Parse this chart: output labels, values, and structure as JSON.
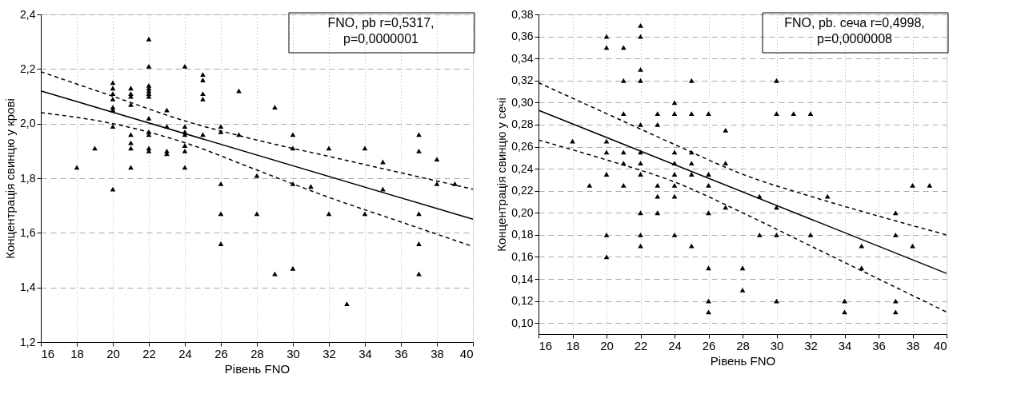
{
  "chart_data": [
    {
      "type": "scatter",
      "xlabel": "Рівень FNO",
      "ylabel": "Концентрація свинцю у крові",
      "annotations": [
        "FNO, pb r=0,5317,",
        "p=0,0000001"
      ],
      "xlim": [
        16,
        40
      ],
      "xticks": [
        16,
        18,
        20,
        22,
        24,
        26,
        28,
        30,
        32,
        34,
        36,
        38,
        40
      ],
      "ylim": [
        1.2,
        2.4
      ],
      "yticks": [
        {
          "value": 1.2,
          "label": "1,2"
        },
        {
          "value": 1.4,
          "label": "1,4"
        },
        {
          "value": 1.6,
          "label": "1,6"
        },
        {
          "value": 1.8,
          "label": "1,8"
        },
        {
          "value": 2.0,
          "label": "2,0"
        },
        {
          "value": 2.2,
          "label": "2,2"
        },
        {
          "value": 2.4,
          "label": "2,4"
        }
      ],
      "grid": true,
      "series": [
        {
          "marker": "triangle",
          "color": "#000000",
          "x": [
            18,
            19,
            20,
            20,
            20,
            20,
            20,
            20,
            20,
            20,
            21,
            21,
            21,
            21,
            21,
            21,
            21,
            21,
            22,
            22,
            22,
            22,
            22,
            22,
            22,
            22,
            22,
            22,
            22,
            22,
            23,
            23,
            23,
            23,
            24,
            24,
            24,
            24,
            24,
            24,
            24,
            25,
            25,
            25,
            25,
            25,
            26,
            26,
            26,
            26,
            26,
            27,
            27,
            28,
            28,
            29,
            29,
            30,
            30,
            30,
            30,
            31,
            32,
            32,
            33,
            34,
            34,
            35,
            35,
            37,
            37,
            37,
            37,
            37,
            38,
            38,
            39
          ],
          "values": [
            1.84,
            1.91,
            2.15,
            2.13,
            2.11,
            2.09,
            2.06,
            2.05,
            1.99,
            1.76,
            2.13,
            2.11,
            2.1,
            2.07,
            1.96,
            1.93,
            1.91,
            1.84,
            2.31,
            2.21,
            2.14,
            2.13,
            2.12,
            2.11,
            2.1,
            2.02,
            1.97,
            1.96,
            1.91,
            1.9,
            2.05,
            1.99,
            1.9,
            1.89,
            2.21,
            1.99,
            1.97,
            1.96,
            1.92,
            1.9,
            1.84,
            2.18,
            2.16,
            2.11,
            2.09,
            1.96,
            1.99,
            1.97,
            1.78,
            1.67,
            1.56,
            2.12,
            1.96,
            1.81,
            1.67,
            2.06,
            1.45,
            1.96,
            1.91,
            1.78,
            1.47,
            1.77,
            1.91,
            1.67,
            1.34,
            1.91,
            1.67,
            1.86,
            1.76,
            1.96,
            1.9,
            1.67,
            1.56,
            1.45,
            1.87,
            1.78,
            1.78
          ]
        },
        {
          "type": "line",
          "color": "#000000",
          "line_style": "solid",
          "x": [
            16,
            40
          ],
          "values": [
            2.12,
            1.65
          ]
        },
        {
          "type": "line",
          "color": "#000000",
          "line_style": "dashed",
          "x": [
            16,
            20,
            24,
            28,
            32,
            36,
            40
          ],
          "values": [
            2.19,
            2.1,
            2.01,
            1.94,
            1.88,
            1.82,
            1.76
          ]
        },
        {
          "type": "line",
          "color": "#000000",
          "line_style": "dashed",
          "x": [
            16,
            20,
            24,
            28,
            32,
            36,
            40
          ],
          "values": [
            2.04,
            2.0,
            1.93,
            1.83,
            1.73,
            1.64,
            1.55
          ]
        }
      ]
    },
    {
      "type": "scatter",
      "xlabel": "Рівень FNO",
      "ylabel": "Концентрація свинцю у сечі",
      "annotations": [
        "FNO, pb. сеча  r=0,4998,",
        "p=0,0000008"
      ],
      "xlim": [
        16,
        40
      ],
      "xticks": [
        16,
        18,
        20,
        22,
        24,
        26,
        28,
        30,
        32,
        34,
        36,
        38,
        40
      ],
      "ylim": [
        0.09,
        0.38
      ],
      "yticks": [
        {
          "value": 0.1,
          "label": "0,10"
        },
        {
          "value": 0.12,
          "label": "0,12"
        },
        {
          "value": 0.14,
          "label": "0,14"
        },
        {
          "value": 0.16,
          "label": "0,16"
        },
        {
          "value": 0.18,
          "label": "0,18"
        },
        {
          "value": 0.2,
          "label": "0,20"
        },
        {
          "value": 0.22,
          "label": "0,22"
        },
        {
          "value": 0.24,
          "label": "0,24"
        },
        {
          "value": 0.26,
          "label": "0,26"
        },
        {
          "value": 0.28,
          "label": "0,28"
        },
        {
          "value": 0.3,
          "label": "0,30"
        },
        {
          "value": 0.32,
          "label": "0,32"
        },
        {
          "value": 0.34,
          "label": "0,34"
        },
        {
          "value": 0.36,
          "label": "0,36"
        },
        {
          "value": 0.38,
          "label": "0,38"
        }
      ],
      "grid": true,
      "series": [
        {
          "marker": "triangle",
          "color": "#000000",
          "x": [
            18,
            19,
            20,
            20,
            20,
            20,
            20,
            20,
            20,
            21,
            21,
            21,
            21,
            21,
            21,
            22,
            22,
            22,
            22,
            22,
            22,
            22,
            22,
            22,
            22,
            22,
            23,
            23,
            23,
            23,
            23,
            24,
            24,
            24,
            24,
            24,
            24,
            24,
            24,
            25,
            25,
            25,
            25,
            25,
            25,
            26,
            26,
            26,
            26,
            26,
            26,
            26,
            27,
            27,
            27,
            28,
            28,
            29,
            29,
            30,
            30,
            30,
            30,
            30,
            31,
            32,
            32,
            33,
            34,
            34,
            35,
            35,
            37,
            37,
            37,
            37,
            38,
            38,
            39
          ],
          "values": [
            0.265,
            0.225,
            0.36,
            0.35,
            0.265,
            0.255,
            0.235,
            0.18,
            0.16,
            0.35,
            0.32,
            0.29,
            0.255,
            0.245,
            0.225,
            0.37,
            0.36,
            0.33,
            0.32,
            0.28,
            0.255,
            0.245,
            0.235,
            0.2,
            0.18,
            0.17,
            0.29,
            0.28,
            0.225,
            0.215,
            0.2,
            0.3,
            0.29,
            0.255,
            0.245,
            0.235,
            0.225,
            0.215,
            0.18,
            0.32,
            0.29,
            0.255,
            0.245,
            0.235,
            0.17,
            0.29,
            0.235,
            0.225,
            0.2,
            0.15,
            0.12,
            0.11,
            0.275,
            0.245,
            0.205,
            0.15,
            0.13,
            0.215,
            0.18,
            0.32,
            0.29,
            0.205,
            0.18,
            0.12,
            0.29,
            0.29,
            0.18,
            0.215,
            0.12,
            0.11,
            0.17,
            0.15,
            0.2,
            0.18,
            0.12,
            0.11,
            0.225,
            0.17,
            0.225
          ]
        },
        {
          "type": "line",
          "color": "#000000",
          "line_style": "solid",
          "x": [
            16,
            40
          ],
          "values": [
            0.293,
            0.145
          ]
        },
        {
          "type": "line",
          "color": "#000000",
          "line_style": "dashed",
          "x": [
            16,
            20,
            24,
            28,
            32,
            36,
            40
          ],
          "values": [
            0.318,
            0.29,
            0.262,
            0.235,
            0.215,
            0.197,
            0.18
          ]
        },
        {
          "type": "line",
          "color": "#000000",
          "line_style": "dashed",
          "x": [
            16,
            20,
            24,
            28,
            32,
            36,
            40
          ],
          "values": [
            0.266,
            0.248,
            0.228,
            0.2,
            0.17,
            0.14,
            0.11
          ]
        }
      ]
    }
  ]
}
